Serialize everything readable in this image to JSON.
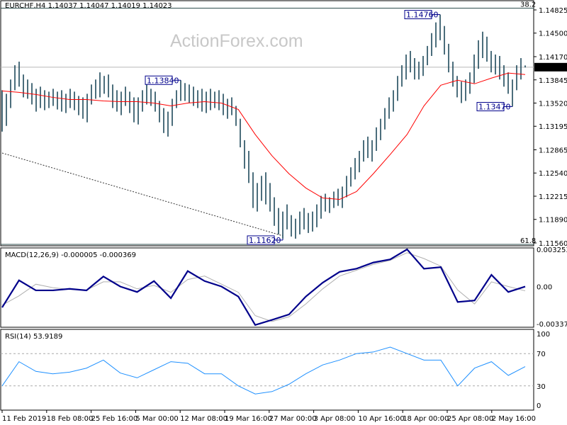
{
  "header": {
    "symbol_info": "EURCHF,H4  1.14037 1.14047 1.14019 1.14023"
  },
  "watermark": "ActionForex.com",
  "colors": {
    "bars": "#1f4a5c",
    "ma": "#ff0000",
    "macd": "#00008b",
    "signal": "#b0b0b0",
    "rsi": "#1e90ff",
    "trendline": "#333333"
  },
  "chart_data": [
    {
      "type": "bar",
      "title": "EURCHF,H4",
      "ohlc_readout": [
        "1.14037",
        "1.14047",
        "1.14019",
        "1.14023"
      ],
      "current_price": 1.14023,
      "current_price_label": "1.14023",
      "yticks": [
        "1.14825",
        "1.14500",
        "1.14170",
        "1.13845",
        "1.13520",
        "1.13195",
        "1.12865",
        "1.12540",
        "1.12215",
        "1.11890",
        "1.11560"
      ],
      "ylim": [
        1.1156,
        1.14825
      ],
      "fib_levels": [
        {
          "label": "38.2",
          "price": 1.1485
        },
        {
          "label": "61.8",
          "price": 1.1154
        }
      ],
      "annotations": [
        {
          "text": "1.14760",
          "price": 1.1476,
          "bar": 103
        },
        {
          "text": "1.13840",
          "price": 1.1384,
          "bar": 42
        },
        {
          "text": "1.11620",
          "price": 1.1162,
          "bar": 66
        },
        {
          "text": "1.13470",
          "price": 1.1347,
          "bar": 120
        }
      ],
      "trendline": [
        {
          "bar": 0,
          "price": 1.1282
        },
        {
          "bar": 66,
          "price": 1.1166
        }
      ],
      "bars_high_low": [
        [
          1.137,
          1.1312
        ],
        [
          1.1365,
          1.132
        ],
        [
          1.1385,
          1.1345
        ],
        [
          1.1405,
          1.137
        ],
        [
          1.141,
          1.1375
        ],
        [
          1.1392,
          1.136
        ],
        [
          1.1385,
          1.1358
        ],
        [
          1.138,
          1.135
        ],
        [
          1.1372,
          1.134
        ],
        [
          1.1375,
          1.1345
        ],
        [
          1.137,
          1.1342
        ],
        [
          1.1368,
          1.1345
        ],
        [
          1.1372,
          1.1348
        ],
        [
          1.1368,
          1.1343
        ],
        [
          1.137,
          1.134
        ],
        [
          1.1365,
          1.1338
        ],
        [
          1.1372,
          1.1345
        ],
        [
          1.1368,
          1.1342
        ],
        [
          1.1362,
          1.1335
        ],
        [
          1.136,
          1.133
        ],
        [
          1.1365,
          1.1325
        ],
        [
          1.1378,
          1.135
        ],
        [
          1.1385,
          1.1358
        ],
        [
          1.1395,
          1.136
        ],
        [
          1.139,
          1.1365
        ],
        [
          1.1392,
          1.136
        ],
        [
          1.1378,
          1.1345
        ],
        [
          1.137,
          1.134
        ],
        [
          1.1368,
          1.1335
        ],
        [
          1.1375,
          1.1348
        ],
        [
          1.1368,
          1.1338
        ],
        [
          1.136,
          1.1325
        ],
        [
          1.136,
          1.1322
        ],
        [
          1.137,
          1.134
        ],
        [
          1.1378,
          1.135
        ],
        [
          1.1372,
          1.1348
        ],
        [
          1.1368,
          1.134
        ],
        [
          1.1355,
          1.1325
        ],
        [
          1.1345,
          1.131
        ],
        [
          1.134,
          1.1305
        ],
        [
          1.1358,
          1.132
        ],
        [
          1.137,
          1.1345
        ],
        [
          1.1384,
          1.1355
        ],
        [
          1.138,
          1.1355
        ],
        [
          1.1378,
          1.1352
        ],
        [
          1.1375,
          1.1348
        ],
        [
          1.137,
          1.1345
        ],
        [
          1.1372,
          1.134
        ],
        [
          1.1368,
          1.1338
        ],
        [
          1.1372,
          1.1342
        ],
        [
          1.1368,
          1.1345
        ],
        [
          1.137,
          1.1342
        ],
        [
          1.1365,
          1.1335
        ],
        [
          1.1358,
          1.133
        ],
        [
          1.136,
          1.1335
        ],
        [
          1.1348,
          1.132
        ],
        [
          1.133,
          1.129
        ],
        [
          1.13,
          1.126
        ],
        [
          1.1285,
          1.124
        ],
        [
          1.1255,
          1.1205
        ],
        [
          1.124,
          1.12
        ],
        [
          1.125,
          1.1215
        ],
        [
          1.1255,
          1.121
        ],
        [
          1.124,
          1.12
        ],
        [
          1.122,
          1.118
        ],
        [
          1.1205,
          1.1168
        ],
        [
          1.12,
          1.1162
        ],
        [
          1.121,
          1.1175
        ],
        [
          1.1195,
          1.1165
        ],
        [
          1.119,
          1.1162
        ],
        [
          1.12,
          1.1168
        ],
        [
          1.1205,
          1.1175
        ],
        [
          1.1198,
          1.117
        ],
        [
          1.12,
          1.1172
        ],
        [
          1.121,
          1.1178
        ],
        [
          1.1222,
          1.119
        ],
        [
          1.1225,
          1.12
        ],
        [
          1.122,
          1.1198
        ],
        [
          1.1228,
          1.1205
        ],
        [
          1.1232,
          1.1208
        ],
        [
          1.1235,
          1.1205
        ],
        [
          1.125,
          1.122
        ],
        [
          1.1262,
          1.1235
        ],
        [
          1.1275,
          1.1245
        ],
        [
          1.1285,
          1.1255
        ],
        [
          1.13,
          1.127
        ],
        [
          1.1305,
          1.1275
        ],
        [
          1.13,
          1.127
        ],
        [
          1.1318,
          1.1285
        ],
        [
          1.133,
          1.13
        ],
        [
          1.1345,
          1.1315
        ],
        [
          1.136,
          1.133
        ],
        [
          1.137,
          1.134
        ],
        [
          1.139,
          1.1355
        ],
        [
          1.1405,
          1.1375
        ],
        [
          1.142,
          1.1385
        ],
        [
          1.1425,
          1.1395
        ],
        [
          1.1415,
          1.1385
        ],
        [
          1.141,
          1.1385
        ],
        [
          1.1418,
          1.139
        ],
        [
          1.1432,
          1.1405
        ],
        [
          1.145,
          1.1418
        ],
        [
          1.1465,
          1.143
        ],
        [
          1.1476,
          1.144
        ],
        [
          1.146,
          1.142
        ],
        [
          1.1435,
          1.1395
        ],
        [
          1.141,
          1.1375
        ],
        [
          1.139,
          1.136
        ],
        [
          1.1382,
          1.1352
        ],
        [
          1.1385,
          1.1355
        ],
        [
          1.1395,
          1.1365
        ],
        [
          1.142,
          1.138
        ],
        [
          1.144,
          1.14
        ],
        [
          1.1452,
          1.1415
        ],
        [
          1.1445,
          1.141
        ],
        [
          1.1425,
          1.1395
        ],
        [
          1.142,
          1.1392
        ],
        [
          1.1418,
          1.1385
        ],
        [
          1.1405,
          1.1375
        ],
        [
          1.1395,
          1.1365
        ],
        [
          1.1385,
          1.1347
        ],
        [
          1.1405,
          1.137
        ],
        [
          1.1415,
          1.1385
        ],
        [
          1.14047,
          1.14019
        ]
      ],
      "moving_average": [
        1.1369,
        1.1367,
        1.1364,
        1.136,
        1.1357,
        1.1357,
        1.1355,
        1.1354,
        1.1354,
        1.1352,
        1.1348,
        1.1352,
        1.1354,
        1.1352,
        1.1343,
        1.1308,
        1.1278,
        1.1253,
        1.1233,
        1.1219,
        1.1217,
        1.1228,
        1.1253,
        1.128,
        1.1308,
        1.1348,
        1.1377,
        1.1384,
        1.1379,
        1.1387,
        1.1394,
        1.1392
      ],
      "xticks": [
        "11 Feb 2019",
        "18 Feb 08:00",
        "25 Feb 16:00",
        "5 Mar 00:00",
        "12 Mar 08:00",
        "19 Mar 16:00",
        "27 Mar 00:00",
        "3 Apr 08:00",
        "10 Apr 16:00",
        "18 Apr 00:00",
        "25 Apr 08:00",
        "2 May 16:00"
      ]
    },
    {
      "type": "line",
      "title": "MACD(12,26,9) -0.000005 -0.000369",
      "yticks": [
        "0.003253",
        "0.00",
        "-0.003373"
      ],
      "ylim": [
        -0.003373,
        0.003253
      ],
      "series": [
        {
          "values": [
            -0.0018,
            0.00053,
            -0.00033,
            -0.00033,
            -0.0002,
            -0.00033,
            0.00086,
            0.0,
            -0.00047,
            0.00047,
            -0.001,
            0.00133,
            0.00047,
            0.0,
            -0.00086,
            -0.0033,
            -0.00286,
            -0.0024,
            -0.00086,
            0.00033,
            0.00126,
            0.00153,
            0.00206,
            0.00233,
            0.00319,
            0.00153,
            0.00166,
            -0.00133,
            -0.0012,
            0.001,
            -0.00047,
            -5e-06
          ]
        },
        {
          "values": [
            -0.0016,
            -0.0008,
            0.0002,
            -0.0001,
            -0.00025,
            -0.0003,
            0.0004,
            0.0004,
            -0.0002,
            0.0001,
            -0.0005,
            0.0006,
            0.0009,
            0.0002,
            -0.0005,
            -0.0025,
            -0.003,
            -0.0026,
            -0.0015,
            -0.0002,
            0.0009,
            0.0014,
            0.0019,
            0.00225,
            0.0029,
            0.0024,
            0.00175,
            -0.0003,
            -0.0015,
            0.0004,
            0.0,
            -0.000369
          ]
        }
      ]
    },
    {
      "type": "line",
      "title": "RSI(14) 53.9189",
      "yticks": [
        "100",
        "70",
        "30",
        "0"
      ],
      "ylim": [
        0,
        100
      ],
      "levels": [
        70,
        30
      ],
      "series": [
        {
          "values": [
            30,
            60,
            48,
            45,
            47,
            52,
            62,
            46,
            40,
            50,
            60,
            58,
            45,
            45,
            30,
            20,
            23,
            32,
            45,
            56,
            62,
            70,
            72,
            78,
            70,
            62,
            62,
            30,
            52,
            60,
            43,
            53.9189
          ]
        }
      ]
    }
  ]
}
